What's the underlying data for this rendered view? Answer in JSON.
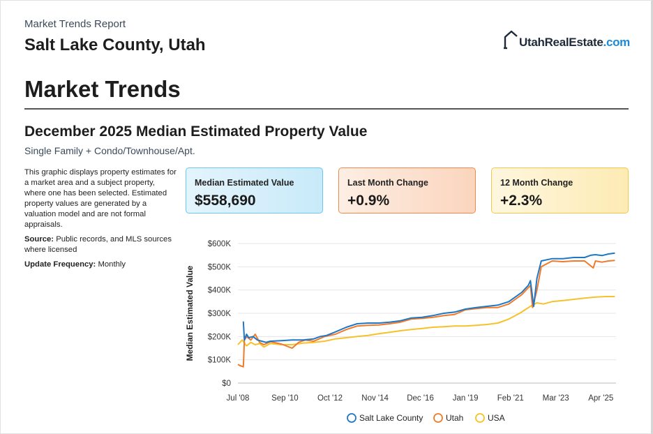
{
  "header": {
    "report_label": "Market Trends Report",
    "location": "Salt Lake County, Utah",
    "logo": {
      "name": "UtahRealEstate",
      "suffix": ".com",
      "icon": "house-icon"
    }
  },
  "section_title": "Market Trends",
  "subtitle": "December 2025 Median Estimated Property Value",
  "property_types": "Single Family + Condo/Townhouse/Apt.",
  "description": {
    "text": "This graphic displays property estimates for a market area and a subject property, where one has been selected. Estimated property values are generated by a valuation model and are not formal appraisals.",
    "source_label": "Source:",
    "source_text": " Public records, and MLS sources where licensed",
    "frequency_label": "Update Frequency:",
    "frequency_text": " Monthly"
  },
  "cards": [
    {
      "label": "Median Estimated Value",
      "value": "$558,690",
      "color": "#6cc6ef"
    },
    {
      "label": "Last Month Change",
      "value": "+0.9%",
      "color": "#f0894e"
    },
    {
      "label": "12 Month Change",
      "value": "+2.3%",
      "color": "#f5c84a"
    }
  ],
  "chart_data": {
    "type": "line",
    "title": "",
    "xlabel": "",
    "ylabel": "Median Estimated Value",
    "ylim": [
      0,
      600000
    ],
    "yticks": [
      0,
      100000,
      200000,
      300000,
      400000,
      500000,
      600000
    ],
    "ytick_labels": [
      "$0",
      "$100K",
      "$200K",
      "$300K",
      "$400K",
      "$500K",
      "$600K"
    ],
    "xlim": [
      2008.5,
      2025.95
    ],
    "xticks": [
      2008.5,
      2010.67,
      2012.75,
      2014.83,
      2016.92,
      2019.0,
      2021.08,
      2023.17,
      2025.25
    ],
    "xtick_labels": [
      "Jul '08",
      "Sep '10",
      "Oct '12",
      "Nov '14",
      "Dec '16",
      "Jan '19",
      "Feb '21",
      "Mar '23",
      "Apr '25"
    ],
    "grid": true,
    "legend_position": "bottom",
    "series": [
      {
        "name": "Salt Lake County",
        "color": "#1f77c4",
        "x": [
          2008.75,
          2008.8,
          2008.9,
          2009.0,
          2009.2,
          2009.4,
          2009.6,
          2009.8,
          2010.0,
          2010.5,
          2011.0,
          2011.5,
          2012.0,
          2012.3,
          2012.6,
          2013.0,
          2013.5,
          2014.0,
          2014.5,
          2015.0,
          2015.5,
          2016.0,
          2016.5,
          2017.0,
          2017.5,
          2018.0,
          2018.5,
          2019.0,
          2019.5,
          2020.0,
          2020.5,
          2021.0,
          2021.3,
          2021.6,
          2021.8,
          2021.9,
          2022.0,
          2022.15,
          2022.3,
          2022.5,
          2023.0,
          2023.5,
          2024.0,
          2024.5,
          2024.8,
          2025.0,
          2025.3,
          2025.6,
          2025.9
        ],
        "y": [
          265000,
          185000,
          210000,
          195000,
          200000,
          185000,
          180000,
          175000,
          180000,
          182000,
          185000,
          185000,
          190000,
          200000,
          205000,
          220000,
          240000,
          255000,
          258000,
          258000,
          262000,
          268000,
          280000,
          283000,
          290000,
          300000,
          305000,
          318000,
          325000,
          330000,
          335000,
          350000,
          370000,
          390000,
          410000,
          420000,
          440000,
          330000,
          450000,
          525000,
          535000,
          535000,
          540000,
          540000,
          550000,
          552000,
          548000,
          555000,
          558690
        ]
      },
      {
        "name": "Utah",
        "color": "#f07a2a",
        "x": [
          2008.5,
          2008.6,
          2008.75,
          2008.8,
          2008.9,
          2009.1,
          2009.3,
          2009.5,
          2009.7,
          2010.0,
          2010.5,
          2011.0,
          2011.3,
          2011.6,
          2012.0,
          2012.5,
          2013.0,
          2013.5,
          2014.0,
          2014.5,
          2015.0,
          2015.5,
          2016.0,
          2016.5,
          2017.0,
          2017.5,
          2018.0,
          2018.5,
          2019.0,
          2019.5,
          2020.0,
          2020.5,
          2021.0,
          2021.3,
          2021.6,
          2021.8,
          2022.0,
          2022.1,
          2022.3,
          2022.5,
          2023.0,
          2023.5,
          2024.0,
          2024.5,
          2024.7,
          2024.9,
          2025.0,
          2025.3,
          2025.6,
          2025.9
        ],
        "y": [
          80000,
          75000,
          70000,
          185000,
          200000,
          185000,
          210000,
          175000,
          165000,
          178000,
          168000,
          150000,
          175000,
          185000,
          180000,
          200000,
          210000,
          230000,
          245000,
          248000,
          250000,
          255000,
          262000,
          275000,
          278000,
          283000,
          290000,
          295000,
          315000,
          320000,
          325000,
          325000,
          340000,
          360000,
          380000,
          400000,
          420000,
          325000,
          400000,
          500000,
          525000,
          522000,
          525000,
          525000,
          510000,
          495000,
          525000,
          520000,
          525000,
          527000
        ]
      },
      {
        "name": "USA",
        "color": "#f7c12a",
        "x": [
          2008.5,
          2008.7,
          2008.9,
          2009.1,
          2009.3,
          2009.5,
          2009.7,
          2010.0,
          2010.5,
          2011.0,
          2011.5,
          2012.0,
          2012.5,
          2013.0,
          2013.5,
          2014.0,
          2014.5,
          2015.0,
          2015.5,
          2016.0,
          2016.5,
          2017.0,
          2017.5,
          2018.0,
          2018.5,
          2019.0,
          2019.5,
          2020.0,
          2020.5,
          2021.0,
          2021.5,
          2022.0,
          2022.3,
          2022.6,
          2023.0,
          2023.5,
          2024.0,
          2024.5,
          2025.0,
          2025.5,
          2025.9
        ],
        "y": [
          165000,
          185000,
          160000,
          175000,
          165000,
          170000,
          155000,
          170000,
          165000,
          165000,
          172000,
          175000,
          180000,
          190000,
          195000,
          200000,
          205000,
          212000,
          218000,
          225000,
          230000,
          235000,
          240000,
          242000,
          245000,
          245000,
          248000,
          252000,
          258000,
          275000,
          300000,
          330000,
          345000,
          340000,
          350000,
          355000,
          360000,
          365000,
          370000,
          372000,
          372000
        ]
      }
    ]
  }
}
